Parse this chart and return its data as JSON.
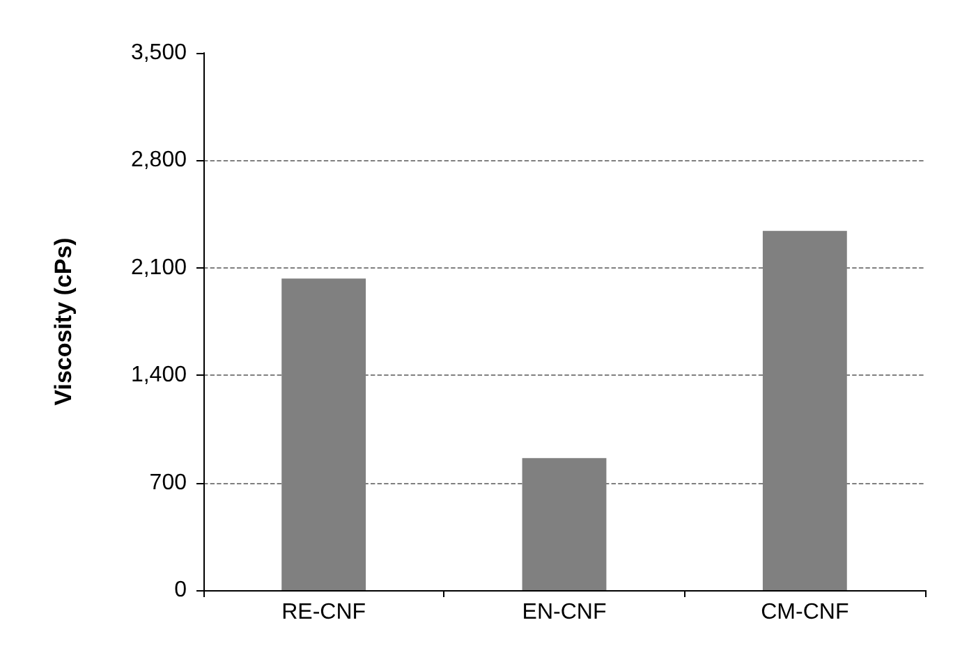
{
  "chart_data": {
    "type": "bar",
    "ylabel": "Viscosity (cPs)",
    "categories": [
      "RE-CNF",
      "EN-CNF",
      "CM-CNF"
    ],
    "values": [
      2030,
      860,
      2340
    ],
    "color": "#808080",
    "ylim": [
      0,
      3500
    ],
    "yticks": [
      {
        "value": 0,
        "label": "0"
      },
      {
        "value": 700,
        "label": "700"
      },
      {
        "value": 1400,
        "label": "1,400"
      },
      {
        "value": 2100,
        "label": "2,100"
      },
      {
        "value": 2800,
        "label": "2,800"
      },
      {
        "value": 3500,
        "label": "3,500"
      }
    ],
    "grid": "y",
    "line_style": "dashed"
  }
}
